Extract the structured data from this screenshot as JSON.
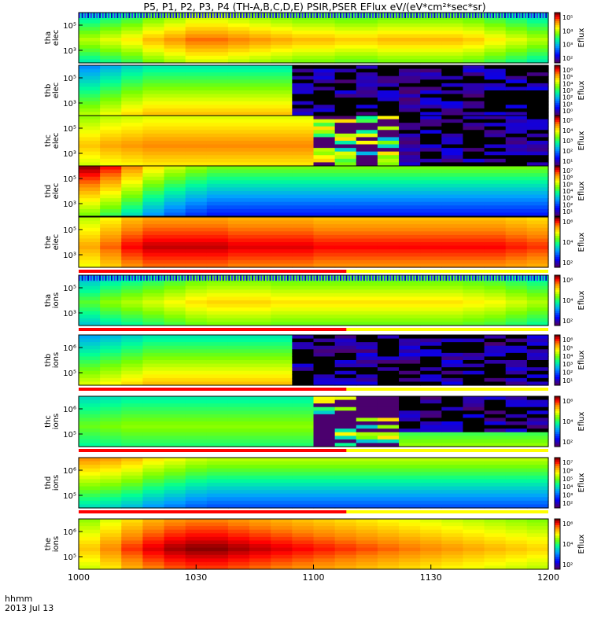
{
  "chart_data": {
    "type": "heatmap",
    "title": "P5, P1, P2, P3, P4 (TH-A,B,C,D,E) PSIR,PSER EFlux eV/(eV*cm²*sec*sr)",
    "x_tick_labels": [
      "1000",
      "1030",
      "1100",
      "1130",
      "1200"
    ],
    "x_label_line1": "hhmm",
    "x_label_line2": "2013 Jul 13",
    "colorbar_label": "Eflux",
    "panels": [
      {
        "name": "tha elec",
        "ylabel": [
          "tha",
          "elec"
        ],
        "yticks": [
          "10⁵",
          "10³"
        ],
        "cbar_ticks": [
          "10⁵",
          "10⁴",
          "10³",
          "10²"
        ],
        "cbar_range": [
          1,
          6
        ],
        "profile": [
          4.2,
          4.4,
          4.6,
          4.9,
          5.1,
          5.3,
          5.3,
          5.2,
          5.1,
          5.0,
          4.9,
          4.9,
          4.8,
          4.8,
          4.9,
          4.9,
          4.9,
          4.9,
          4.8,
          4.6,
          4.4,
          4.2
        ],
        "top_stripe": true
      },
      {
        "name": "thb elec",
        "ylabel": [
          "thb",
          "elec"
        ],
        "yticks": [
          "10⁵",
          "10³"
        ],
        "cbar_ticks": [
          "10⁶",
          "10⁵",
          "10⁴",
          "10³",
          "10²",
          "10¹",
          "10⁰"
        ],
        "cbar_range": [
          0,
          6
        ],
        "profile": [
          3.2,
          3.5,
          3.8,
          4.0,
          4.0,
          4.0,
          4.0,
          4.0,
          4.0,
          4.0,
          4.0,
          4.0,
          4.0,
          4.0,
          4.0,
          4.0,
          4.0,
          4.0,
          4.0,
          4.0,
          4.0,
          3.9
        ],
        "gap_start": 0.425,
        "gap_level": 0.5
      },
      {
        "name": "thc elec",
        "ylabel": [
          "thc",
          "elec"
        ],
        "yticks": [
          "10⁵",
          "10³"
        ],
        "cbar_ticks": [
          "10⁵",
          "10⁴",
          "10³",
          "10²",
          "10¹"
        ],
        "cbar_range": [
          0,
          6
        ],
        "profile": [
          4.2,
          4.4,
          4.5,
          4.6,
          4.6,
          4.6,
          4.6,
          4.6,
          4.6,
          4.6,
          4.6,
          4.6,
          4.6,
          4.6,
          4.6,
          4.6,
          4.6,
          4.6,
          4.6,
          4.6,
          4.6,
          4.5
        ],
        "gap_start": 0.48,
        "noisy_end": 0.67,
        "gap_level": 0.7
      },
      {
        "name": "thd elec",
        "ylabel": [
          "thd",
          "elec"
        ],
        "yticks": [
          "10⁵",
          "10³"
        ],
        "cbar_ticks": [
          "10⁷",
          "10⁶",
          "10⁵",
          "10⁴",
          "10³",
          "10²",
          "10¹"
        ],
        "cbar_range": [
          1,
          7
        ],
        "profile": [
          5.6,
          5.2,
          4.6,
          4.0,
          3.6,
          3.3,
          3.1,
          3.1,
          3.1,
          3.1,
          3.1,
          3.1,
          3.1,
          3.1,
          3.1,
          3.1,
          3.1,
          3.1,
          3.1,
          3.1,
          3.1,
          3.1
        ],
        "bottom_stripe": true
      },
      {
        "name": "the elec",
        "ylabel": [
          "the",
          "elec"
        ],
        "yticks": [
          "10⁵",
          "10³"
        ],
        "cbar_ticks": [
          "10⁶",
          "10⁴",
          "10²"
        ],
        "cbar_range": [
          1,
          7
        ],
        "profile": [
          5.4,
          5.8,
          6.2,
          6.4,
          6.4,
          6.4,
          6.4,
          6.3,
          6.3,
          6.3,
          6.3,
          6.2,
          6.2,
          6.2,
          6.2,
          6.2,
          6.2,
          6.2,
          6.2,
          6.2,
          6.1,
          6.0
        ],
        "bottom_stripe": true
      },
      {
        "name": "tha ions",
        "ylabel": [
          "tha",
          "ions"
        ],
        "yticks": [
          "10⁵",
          "10³"
        ],
        "cbar_ticks": [
          "10⁶",
          "10⁴",
          "10²"
        ],
        "cbar_range": [
          1,
          7
        ],
        "profile": [
          4.3,
          4.6,
          4.8,
          5.0,
          5.2,
          5.4,
          5.5,
          5.5,
          5.5,
          5.4,
          5.4,
          5.4,
          5.4,
          5.4,
          5.4,
          5.4,
          5.4,
          5.4,
          5.3,
          5.2,
          5.0,
          4.8
        ],
        "top_stripe": true,
        "bottom_stripe": true
      },
      {
        "name": "thb ions",
        "ylabel": [
          "thb",
          "ions"
        ],
        "yticks": [
          "10⁶",
          "10⁵"
        ],
        "cbar_ticks": [
          "10⁶",
          "10⁵",
          "10⁴",
          "10³",
          "10²",
          "10¹"
        ],
        "cbar_range": [
          0,
          6
        ],
        "profile": [
          3.4,
          3.6,
          3.8,
          4.0,
          4.0,
          4.0,
          4.0,
          4.0,
          4.0,
          4.0,
          4.0,
          4.0,
          4.0,
          4.0,
          4.0,
          4.0,
          4.0,
          4.0,
          4.0,
          4.0,
          4.0,
          3.9
        ],
        "gap_start": 0.425,
        "gap_level": 0.5,
        "bottom_stripe": true
      },
      {
        "name": "thc ions",
        "ylabel": [
          "thc",
          "ions"
        ],
        "yticks": [
          "10⁶",
          "10⁵"
        ],
        "cbar_ticks": [
          "10⁶",
          "10⁴",
          "10²"
        ],
        "cbar_range": [
          1,
          7
        ],
        "profile": [
          4.0,
          4.1,
          4.2,
          4.2,
          4.2,
          4.2,
          4.2,
          4.2,
          4.2,
          4.2,
          4.2,
          4.2,
          4.2,
          4.2,
          4.2,
          4.2,
          4.2,
          4.2,
          4.2,
          4.2,
          4.2,
          4.1
        ],
        "gap_start": 0.48,
        "noisy_end": 0.67,
        "gap_level": 0.7,
        "bottom_stripe": true
      },
      {
        "name": "thd ions",
        "ylabel": [
          "thd",
          "ions"
        ],
        "yticks": [
          "10⁶",
          "10⁵"
        ],
        "cbar_ticks": [
          "10⁷",
          "10⁶",
          "10⁵",
          "10⁴",
          "10³",
          "10²"
        ],
        "cbar_range": [
          1,
          7
        ],
        "profile": [
          4.6,
          4.5,
          4.3,
          4.0,
          3.8,
          3.6,
          3.5,
          3.5,
          3.5,
          3.5,
          3.5,
          3.5,
          3.5,
          3.5,
          3.5,
          3.5,
          3.5,
          3.5,
          3.5,
          3.5,
          3.5,
          3.5
        ],
        "bottom_stripe": true
      },
      {
        "name": "the ions",
        "ylabel": [
          "the",
          "ions"
        ],
        "yticks": [
          "10⁶",
          "10⁵"
        ],
        "cbar_ticks": [
          "10⁶",
          "10⁴",
          "10²"
        ],
        "cbar_range": [
          1,
          7
        ],
        "profile": [
          5.2,
          5.6,
          6.0,
          6.3,
          6.5,
          6.6,
          6.6,
          6.5,
          6.4,
          6.3,
          6.2,
          6.1,
          6.0,
          5.9,
          5.8,
          5.7,
          5.6,
          5.5,
          5.4,
          5.3,
          5.2,
          5.1
        ]
      }
    ]
  }
}
